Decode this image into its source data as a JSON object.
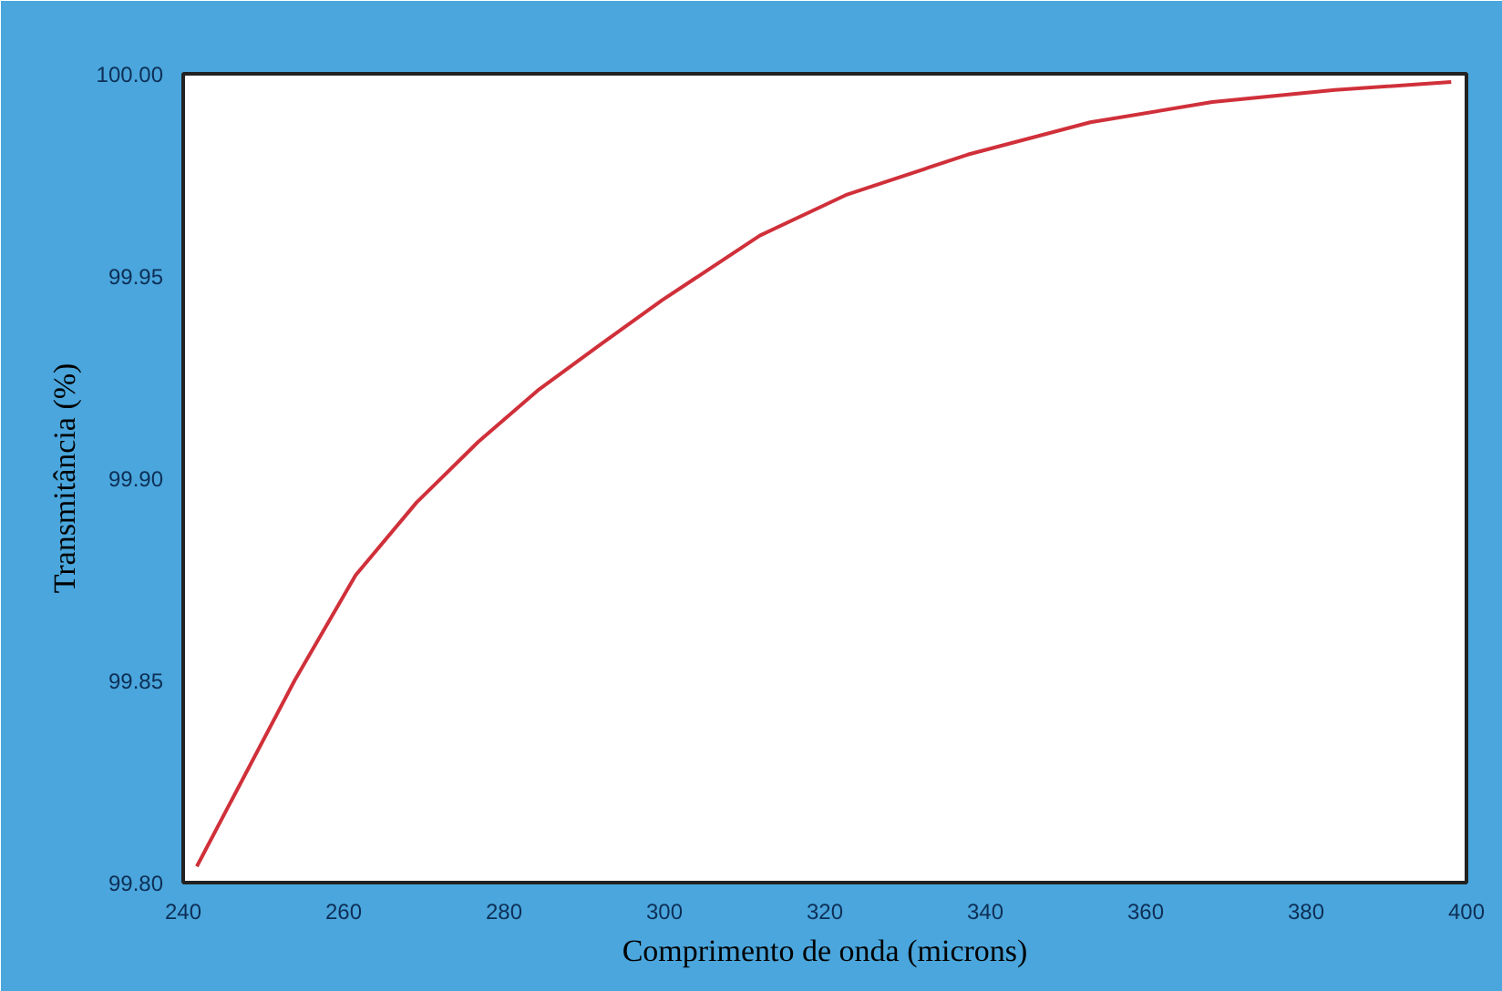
{
  "chart_data": {
    "type": "line",
    "xlabel": "Comprimento de onda (microns)",
    "ylabel": "Transmitância (%)",
    "x": [
      241.7,
      253.9,
      261.5,
      269.1,
      276.8,
      284.4,
      292.0,
      299.7,
      311.9,
      322.6,
      337.8,
      353.1,
      368.3,
      383.6,
      398.1
    ],
    "series": [
      {
        "color": "#d0303a",
        "values": [
          99.804,
          99.85,
          99.876,
          99.894,
          99.909,
          99.922,
          99.933,
          99.944,
          99.96,
          99.97,
          99.98,
          99.988,
          99.993,
          99.996,
          99.998
        ]
      }
    ],
    "xlim": [
      240,
      400
    ],
    "ylim": [
      99.8,
      100
    ],
    "xticks": [
      240,
      260,
      280,
      300,
      320,
      340,
      360,
      380,
      400
    ],
    "yticks": [
      {
        "value": 99.8,
        "label": "99.80"
      },
      {
        "value": 99.85,
        "label": "99.85"
      },
      {
        "value": 99.9,
        "label": "99.90"
      },
      {
        "value": 99.95,
        "label": "99.95"
      },
      {
        "value": 100,
        "label": "100.00"
      }
    ],
    "grid": false,
    "marker": "none",
    "line_style": "solid"
  }
}
